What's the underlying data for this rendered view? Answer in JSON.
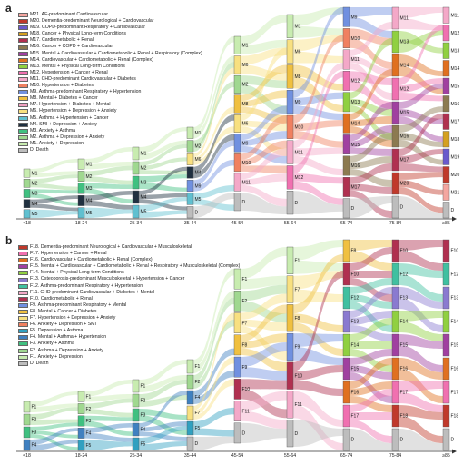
{
  "age_groups": [
    "<18",
    "18-24",
    "25-34",
    "35-44",
    "45-54",
    "55-64",
    "65-74",
    "75-84",
    "≥85"
  ],
  "panels": [
    {
      "label": "a",
      "legend": [
        {
          "code": "M21",
          "text": "AF-predominant Cardiovascular",
          "color": "#f4a6a0"
        },
        {
          "code": "M20",
          "text": "Dementia-predominant Neurological + Cardiovascular",
          "color": "#c0392b"
        },
        {
          "code": "M19",
          "text": "COPD-predominant Respiratory + Cardiovascular",
          "color": "#6a5acd"
        },
        {
          "code": "M18",
          "text": "Cancer + Physical Long-term Conditions",
          "color": "#d4a020"
        },
        {
          "code": "M17",
          "text": "Cardiometabolic + Renal",
          "color": "#b03050"
        },
        {
          "code": "M16",
          "text": "Cancer + COPD + Cardiovascular",
          "color": "#8c7a50"
        },
        {
          "code": "M15",
          "text": "Mental + Cardiovascular + Cardiometabolic + Renal + Respiratory (Complex)",
          "color": "#a040a0"
        },
        {
          "code": "M14",
          "text": "Cardiovascular + Cardiometabolic + Renal (Complex)",
          "color": "#e07020"
        },
        {
          "code": "M13",
          "text": "Mental + Physical Long-term Conditions",
          "color": "#90d040"
        },
        {
          "code": "M12",
          "text": "Hypertension + Cancer + Renal",
          "color": "#f070b0"
        },
        {
          "code": "M11",
          "text": "CHD-predominant Cardiovascular + Diabetes",
          "color": "#f4a8c8"
        },
        {
          "code": "M10",
          "text": "Hypertension + Diabetes",
          "color": "#f08060"
        },
        {
          "code": "M9",
          "text": "Asthma-predominant Respiratory + Hypertension",
          "color": "#7090e0"
        },
        {
          "code": "M8",
          "text": "Mental + Diabetes + Cancer",
          "color": "#f0c040"
        },
        {
          "code": "M7",
          "text": "Hypertension + Diabetes + Mental",
          "color": "#f0a0c0"
        },
        {
          "code": "M6",
          "text": "Hypertension + Depression + Anxiety",
          "color": "#f8e080"
        },
        {
          "code": "M5",
          "text": "Asthma + Hypertension + Cancer",
          "color": "#60c0d0"
        },
        {
          "code": "M4",
          "text": "SMI + Depression + Anxiety",
          "color": "#203040"
        },
        {
          "code": "M3",
          "text": "Anxiety + Asthma",
          "color": "#40c080"
        },
        {
          "code": "M2",
          "text": "Asthma + Depression + Anxiety",
          "color": "#a0d890"
        },
        {
          "code": "M1",
          "text": "Anxiety + Depression",
          "color": "#c8ecb0"
        },
        {
          "code": "D",
          "text": "Death",
          "color": "#bdbdbd"
        }
      ],
      "columns": [
        {
          "nodes": [
            "M1",
            "M2",
            "M3",
            "M4",
            "M5"
          ]
        },
        {
          "nodes": [
            "M1",
            "M2",
            "M3",
            "M4",
            "M5"
          ]
        },
        {
          "nodes": [
            "M1",
            "M2",
            "M3",
            "M4",
            "M5"
          ]
        },
        {
          "nodes": [
            "M1",
            "M2",
            "M6",
            "M4",
            "M9",
            "M5",
            "D"
          ]
        },
        {
          "nodes": [
            "M1",
            "M6",
            "M2",
            "M8",
            "M6",
            "M9",
            "M10",
            "M11",
            "D"
          ]
        },
        {
          "nodes": [
            "M1",
            "M6",
            "M8",
            "M9",
            "M10",
            "M11",
            "M12",
            "D"
          ]
        },
        {
          "nodes": [
            "M9",
            "M10",
            "M11",
            "M12",
            "M13",
            "M14",
            "M15",
            "M16",
            "M17",
            "D"
          ]
        },
        {
          "nodes": [
            "M11",
            "M13",
            "M14",
            "M12",
            "M15",
            "M16",
            "M17",
            "M20",
            "D"
          ]
        },
        {
          "nodes": [
            "M11",
            "M12",
            "M13",
            "M14",
            "M15",
            "M16",
            "M17",
            "M18",
            "M19",
            "M20",
            "M21",
            "D"
          ]
        }
      ]
    },
    {
      "label": "b",
      "legend": [
        {
          "code": "F18",
          "text": "Dementia-predominant Neurological + Cardiovascular + Musculoskeletal",
          "color": "#c0392b"
        },
        {
          "code": "F17",
          "text": "Hypertension + Cancer + Renal",
          "color": "#f070b0"
        },
        {
          "code": "F16",
          "text": "Cardiovascular + Cardiometabolic + Renal (Complex)",
          "color": "#e07020"
        },
        {
          "code": "F15",
          "text": "Mental + Cardiovascular + Cardiometabolic + Renal + Respiratory + Musculoskeletal (Complex)",
          "color": "#a040a0"
        },
        {
          "code": "F14",
          "text": "Mental + Physical Long-term Conditions",
          "color": "#90d040"
        },
        {
          "code": "F13",
          "text": "Osteoporosis-predominant Musculoskeletal + Hypertension + Cancer",
          "color": "#8a7ad0"
        },
        {
          "code": "F12",
          "text": "Asthma-predominant Respiratory + Hypertension",
          "color": "#40c0a0"
        },
        {
          "code": "F11",
          "text": "CHD-predominant Cardiovascular + Diabetes + Mental",
          "color": "#f4a8c8"
        },
        {
          "code": "F10",
          "text": "Cardiometabolic + Renal",
          "color": "#b03050"
        },
        {
          "code": "F9",
          "text": "Asthma-predominant Respiratory + Mental",
          "color": "#7090e0"
        },
        {
          "code": "F8",
          "text": "Mental + Cancer + Diabetes",
          "color": "#f0c040"
        },
        {
          "code": "F7",
          "text": "Hypertension + Depression + Anxiety",
          "color": "#f8e080"
        },
        {
          "code": "F6",
          "text": "Anxiety + Depression + SMI",
          "color": "#f08060"
        },
        {
          "code": "F5",
          "text": "Depression + Asthma",
          "color": "#30a0c0"
        },
        {
          "code": "F4",
          "text": "Mental + Asthma + Hypertension",
          "color": "#4080c0"
        },
        {
          "code": "F3",
          "text": "Anxiety + Asthma",
          "color": "#40c080"
        },
        {
          "code": "F2",
          "text": "Asthma + Depression + Anxiety",
          "color": "#a0d890"
        },
        {
          "code": "F1",
          "text": "Anxiety + Depression",
          "color": "#c8ecb0"
        },
        {
          "code": "D",
          "text": "Death",
          "color": "#bdbdbd"
        }
      ],
      "columns": [
        {
          "nodes": [
            "F1",
            "F2",
            "F3",
            "F4"
          ]
        },
        {
          "nodes": [
            "F1",
            "F2",
            "F3",
            "F4",
            "F5"
          ]
        },
        {
          "nodes": [
            "F1",
            "F2",
            "F3",
            "F4",
            "F5"
          ]
        },
        {
          "nodes": [
            "F1",
            "F2",
            "F4",
            "F7",
            "F5",
            "D"
          ]
        },
        {
          "nodes": [
            "F1",
            "F2",
            "F7",
            "F8",
            "F9",
            "F10",
            "F11",
            "D"
          ]
        },
        {
          "nodes": [
            "F1",
            "F7",
            "F8",
            "F9",
            "F10",
            "F11",
            "D"
          ]
        },
        {
          "nodes": [
            "F8",
            "F10",
            "F12",
            "F13",
            "F14",
            "F15",
            "F16",
            "F17",
            "D"
          ]
        },
        {
          "nodes": [
            "F10",
            "F12",
            "F13",
            "F14",
            "F15",
            "F16",
            "F17",
            "F18",
            "D"
          ]
        },
        {
          "nodes": [
            "F10",
            "F12",
            "F13",
            "F14",
            "F15",
            "F16",
            "F17",
            "F18",
            "D"
          ]
        }
      ]
    }
  ]
}
